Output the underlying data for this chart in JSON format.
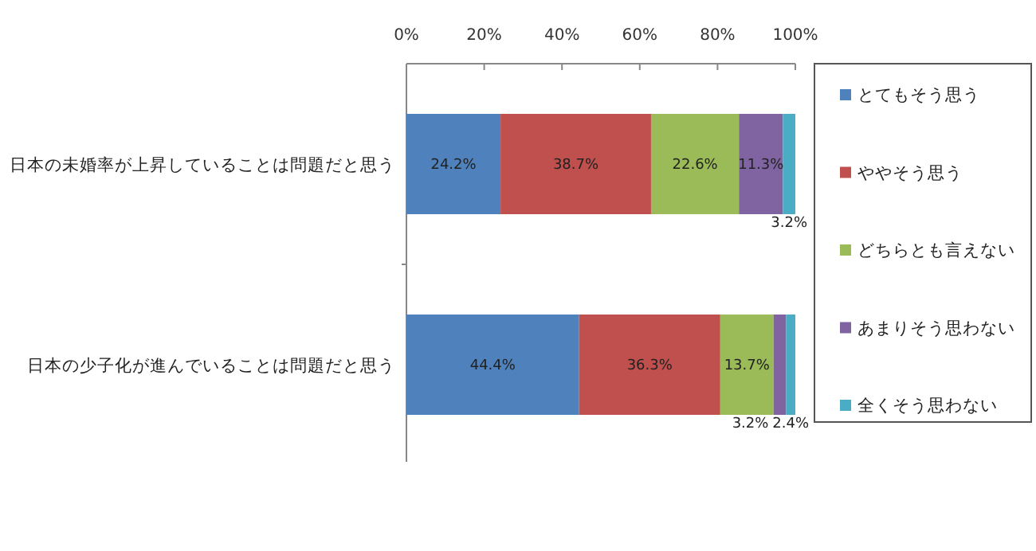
{
  "chart_data": {
    "type": "bar",
    "orientation": "horizontal",
    "stacked": true,
    "categories": [
      "日本の未婚率が上昇していることは問題だと思う",
      "日本の少子化が進んでいることは問題だと思う"
    ],
    "series": [
      {
        "name": "とてもそう思う",
        "color": "#4f81bd",
        "values": [
          24.2,
          44.4
        ],
        "value_labels": [
          "24.2%",
          "44.4%"
        ]
      },
      {
        "name": "ややそう思う",
        "color": "#c0504d",
        "values": [
          38.7,
          36.3
        ],
        "value_labels": [
          "38.7%",
          "36.3%"
        ]
      },
      {
        "name": "どちらとも言えない",
        "color": "#9bbb59",
        "values": [
          22.6,
          13.7
        ],
        "value_labels": [
          "22.6%",
          "13.7%"
        ]
      },
      {
        "name": "あまりそう思わない",
        "color": "#8064a2",
        "values": [
          11.3,
          3.2
        ],
        "value_labels": [
          "11.3%",
          "3.2%"
        ]
      },
      {
        "name": "全くそう思わない",
        "color": "#4bacc6",
        "values": [
          3.2,
          2.4
        ],
        "value_labels": [
          "3.2%",
          "2.4%"
        ]
      }
    ],
    "xlim": [
      0,
      100
    ],
    "xticks": [
      {
        "value": 0,
        "label": "0%"
      },
      {
        "value": 20,
        "label": "20%"
      },
      {
        "value": 40,
        "label": "40%"
      },
      {
        "value": 60,
        "label": "60%"
      },
      {
        "value": 80,
        "label": "80%"
      },
      {
        "value": 100,
        "label": "100%"
      }
    ],
    "grid": false,
    "legend": "right"
  }
}
